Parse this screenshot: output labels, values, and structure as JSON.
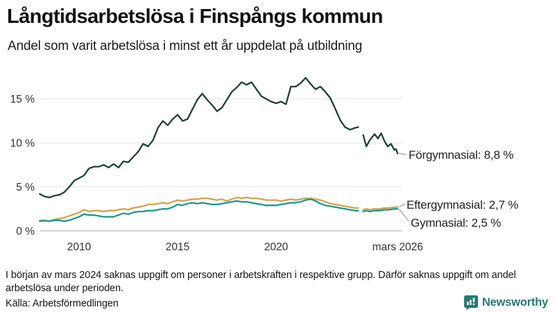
{
  "header": {
    "title": "Långtidsarbetslösa i Finspångs kommun",
    "subtitle": "Andel som varit arbetslösa i minst ett år uppdelat på utbildning"
  },
  "chart_data": {
    "type": "line",
    "unit": "%",
    "ylim": [
      0,
      17.5
    ],
    "x_range": [
      2008.0,
      2026.25
    ],
    "grid": true,
    "legend_position": "end-of-line-labels",
    "y_ticks": [
      {
        "label": "0 %",
        "v": 0
      },
      {
        "label": "5 %",
        "v": 5
      },
      {
        "label": "10 %",
        "v": 10
      },
      {
        "label": "15 %",
        "v": 15
      }
    ],
    "x_ticks": [
      {
        "label": "2010",
        "t": 2010
      },
      {
        "label": "2015",
        "t": 2015
      },
      {
        "label": "2020",
        "t": 2020
      },
      {
        "label": "mars 2026",
        "t": 2026.17
      }
    ],
    "data_gap": {
      "start": 2024.17,
      "end": 2024.42,
      "reason": "uppgift saknas"
    },
    "series": [
      {
        "name": "Förgymnasial",
        "end_label": "Förgymnasial: 8,8 %",
        "end_value": "8,8 %",
        "color": "#1e3f3a",
        "points": [
          [
            2008,
            4.2
          ],
          [
            2008.25,
            3.9
          ],
          [
            2008.5,
            3.8
          ],
          [
            2008.75,
            4.0
          ],
          [
            2009,
            4.1
          ],
          [
            2009.25,
            4.4
          ],
          [
            2009.5,
            5.0
          ],
          [
            2009.75,
            5.7
          ],
          [
            2010,
            6.0
          ],
          [
            2010.25,
            6.3
          ],
          [
            2010.5,
            7.1
          ],
          [
            2010.75,
            7.3
          ],
          [
            2011,
            7.3
          ],
          [
            2011.25,
            7.5
          ],
          [
            2011.5,
            7.2
          ],
          [
            2011.75,
            7.6
          ],
          [
            2012,
            7.2
          ],
          [
            2012.25,
            7.9
          ],
          [
            2012.5,
            7.8
          ],
          [
            2012.75,
            8.4
          ],
          [
            2013,
            9.0
          ],
          [
            2013.25,
            9.9
          ],
          [
            2013.5,
            9.6
          ],
          [
            2013.75,
            10.3
          ],
          [
            2014,
            11.7
          ],
          [
            2014.25,
            12.5
          ],
          [
            2014.5,
            12.0
          ],
          [
            2014.75,
            12.7
          ],
          [
            2015,
            13.2
          ],
          [
            2015.25,
            12.5
          ],
          [
            2015.5,
            12.7
          ],
          [
            2015.75,
            13.8
          ],
          [
            2016,
            14.9
          ],
          [
            2016.25,
            15.6
          ],
          [
            2016.5,
            14.9
          ],
          [
            2016.75,
            14.3
          ],
          [
            2017,
            13.6
          ],
          [
            2017.25,
            14.0
          ],
          [
            2017.5,
            14.9
          ],
          [
            2017.75,
            15.8
          ],
          [
            2018,
            16.3
          ],
          [
            2018.25,
            16.9
          ],
          [
            2018.5,
            16.6
          ],
          [
            2018.75,
            16.9
          ],
          [
            2019,
            16.1
          ],
          [
            2019.25,
            15.3
          ],
          [
            2019.5,
            15.0
          ],
          [
            2019.75,
            14.7
          ],
          [
            2020,
            14.5
          ],
          [
            2020.25,
            14.7
          ],
          [
            2020.5,
            14.4
          ],
          [
            2020.75,
            16.4
          ],
          [
            2021,
            16.4
          ],
          [
            2021.25,
            16.8
          ],
          [
            2021.5,
            17.4
          ],
          [
            2021.75,
            16.7
          ],
          [
            2022,
            16.1
          ],
          [
            2022.25,
            16.4
          ],
          [
            2022.5,
            15.8
          ],
          [
            2022.75,
            15.1
          ],
          [
            2023,
            13.9
          ],
          [
            2023.25,
            12.6
          ],
          [
            2023.5,
            11.8
          ],
          [
            2023.75,
            11.5
          ],
          [
            2024,
            11.7
          ],
          [
            2024.17,
            11.8
          ],
          [
            2024.25,
            null
          ],
          [
            2024.42,
            10.9
          ],
          [
            2024.58,
            9.6
          ],
          [
            2024.75,
            10.3
          ],
          [
            2025,
            11.0
          ],
          [
            2025.17,
            10.5
          ],
          [
            2025.33,
            11.1
          ],
          [
            2025.5,
            10.2
          ],
          [
            2025.67,
            9.6
          ],
          [
            2025.83,
            9.9
          ],
          [
            2026,
            9.2
          ],
          [
            2026.08,
            9.3
          ],
          [
            2026.17,
            8.8
          ]
        ]
      },
      {
        "name": "Eftergymnasial",
        "end_label": "Eftergymnasial: 2,7 %",
        "end_value": "2,7 %",
        "color": "#d8a04a",
        "points": [
          [
            2008,
            1.2
          ],
          [
            2008.25,
            1.2
          ],
          [
            2008.5,
            1.1
          ],
          [
            2008.75,
            1.3
          ],
          [
            2009,
            1.4
          ],
          [
            2009.25,
            1.5
          ],
          [
            2009.5,
            1.7
          ],
          [
            2009.75,
            1.9
          ],
          [
            2010,
            2.1
          ],
          [
            2010.25,
            2.4
          ],
          [
            2010.5,
            2.2
          ],
          [
            2010.75,
            2.3
          ],
          [
            2011,
            2.3
          ],
          [
            2011.25,
            2.2
          ],
          [
            2011.5,
            2.3
          ],
          [
            2011.75,
            2.3
          ],
          [
            2012,
            2.4
          ],
          [
            2012.25,
            2.5
          ],
          [
            2012.5,
            2.4
          ],
          [
            2012.75,
            2.6
          ],
          [
            2013,
            2.7
          ],
          [
            2013.25,
            2.8
          ],
          [
            2013.5,
            3.0
          ],
          [
            2013.75,
            3.0
          ],
          [
            2014,
            3.1
          ],
          [
            2014.25,
            3.2
          ],
          [
            2014.5,
            3.1
          ],
          [
            2014.75,
            3.3
          ],
          [
            2015,
            3.5
          ],
          [
            2015.25,
            3.4
          ],
          [
            2015.5,
            3.5
          ],
          [
            2015.75,
            3.6
          ],
          [
            2016,
            3.6
          ],
          [
            2016.25,
            3.7
          ],
          [
            2016.5,
            3.7
          ],
          [
            2016.75,
            3.6
          ],
          [
            2017,
            3.5
          ],
          [
            2017.25,
            3.6
          ],
          [
            2017.5,
            3.4
          ],
          [
            2017.75,
            3.6
          ],
          [
            2018,
            3.8
          ],
          [
            2018.25,
            3.7
          ],
          [
            2018.5,
            3.8
          ],
          [
            2018.75,
            3.7
          ],
          [
            2019,
            3.7
          ],
          [
            2019.25,
            3.6
          ],
          [
            2019.5,
            3.5
          ],
          [
            2019.75,
            3.5
          ],
          [
            2020,
            3.5
          ],
          [
            2020.25,
            3.4
          ],
          [
            2020.5,
            3.5
          ],
          [
            2020.75,
            3.6
          ],
          [
            2021,
            3.5
          ],
          [
            2021.25,
            3.6
          ],
          [
            2021.5,
            3.7
          ],
          [
            2021.75,
            3.7
          ],
          [
            2022,
            3.6
          ],
          [
            2022.25,
            3.5
          ],
          [
            2022.5,
            3.3
          ],
          [
            2022.75,
            3.1
          ],
          [
            2023,
            3.0
          ],
          [
            2023.25,
            2.9
          ],
          [
            2023.5,
            2.8
          ],
          [
            2023.75,
            2.7
          ],
          [
            2024,
            2.6
          ],
          [
            2024.17,
            2.6
          ],
          [
            2024.25,
            null
          ],
          [
            2024.42,
            2.4
          ],
          [
            2024.58,
            2.5
          ],
          [
            2024.75,
            2.4
          ],
          [
            2025,
            2.5
          ],
          [
            2025.25,
            2.5
          ],
          [
            2025.5,
            2.6
          ],
          [
            2025.75,
            2.6
          ],
          [
            2026,
            2.7
          ],
          [
            2026.17,
            2.7
          ]
        ]
      },
      {
        "name": "Gymnasial",
        "end_label": "Gymnasial: 2,5 %",
        "end_value": "2,5 %",
        "color": "#169a8c",
        "points": [
          [
            2008,
            1.1
          ],
          [
            2008.25,
            1.15
          ],
          [
            2008.5,
            1.1
          ],
          [
            2008.75,
            1.2
          ],
          [
            2009,
            1.2
          ],
          [
            2009.25,
            1.1
          ],
          [
            2009.5,
            1.2
          ],
          [
            2009.75,
            1.4
          ],
          [
            2010,
            1.6
          ],
          [
            2010.25,
            1.9
          ],
          [
            2010.5,
            1.8
          ],
          [
            2010.75,
            1.8
          ],
          [
            2011,
            1.7
          ],
          [
            2011.25,
            1.6
          ],
          [
            2011.5,
            1.6
          ],
          [
            2011.75,
            1.6
          ],
          [
            2012,
            1.8
          ],
          [
            2012.25,
            2.0
          ],
          [
            2012.5,
            1.9
          ],
          [
            2012.75,
            2.1
          ],
          [
            2013,
            2.2
          ],
          [
            2013.25,
            2.2
          ],
          [
            2013.5,
            2.3
          ],
          [
            2013.75,
            2.3
          ],
          [
            2014,
            2.4
          ],
          [
            2014.25,
            2.5
          ],
          [
            2014.5,
            2.5
          ],
          [
            2014.75,
            2.7
          ],
          [
            2015,
            3.0
          ],
          [
            2015.25,
            2.9
          ],
          [
            2015.5,
            3.1
          ],
          [
            2015.75,
            3.2
          ],
          [
            2016,
            3.1
          ],
          [
            2016.25,
            3.2
          ],
          [
            2016.5,
            3.1
          ],
          [
            2016.75,
            3.0
          ],
          [
            2017,
            3.0
          ],
          [
            2017.25,
            3.1
          ],
          [
            2017.5,
            3.2
          ],
          [
            2017.75,
            3.3
          ],
          [
            2018,
            3.4
          ],
          [
            2018.25,
            3.3
          ],
          [
            2018.5,
            3.3
          ],
          [
            2018.75,
            3.2
          ],
          [
            2019,
            3.1
          ],
          [
            2019.25,
            3.0
          ],
          [
            2019.5,
            2.9
          ],
          [
            2019.75,
            2.9
          ],
          [
            2020,
            2.9
          ],
          [
            2020.25,
            3.0
          ],
          [
            2020.5,
            3.1
          ],
          [
            2020.75,
            3.2
          ],
          [
            2021,
            3.2
          ],
          [
            2021.25,
            3.3
          ],
          [
            2021.5,
            3.5
          ],
          [
            2021.75,
            3.6
          ],
          [
            2022,
            3.4
          ],
          [
            2022.25,
            3.1
          ],
          [
            2022.5,
            2.9
          ],
          [
            2022.75,
            2.8
          ],
          [
            2023,
            2.7
          ],
          [
            2023.25,
            2.6
          ],
          [
            2023.5,
            2.5
          ],
          [
            2023.75,
            2.4
          ],
          [
            2024,
            2.3
          ],
          [
            2024.17,
            2.3
          ],
          [
            2024.25,
            null
          ],
          [
            2024.42,
            2.2
          ],
          [
            2024.58,
            2.3
          ],
          [
            2024.75,
            2.2
          ],
          [
            2025,
            2.3
          ],
          [
            2025.25,
            2.3
          ],
          [
            2025.5,
            2.4
          ],
          [
            2025.75,
            2.4
          ],
          [
            2026,
            2.5
          ],
          [
            2026.17,
            2.5
          ]
        ]
      }
    ]
  },
  "footer": {
    "note": "I början av mars 2024 saknas uppgift om personer i arbetskraften i respektive grupp. Därför saknas uppgift om andel arbetslösa under perioden.",
    "source": "Källa: Arbetsförmedlingen",
    "brand": "Newsworthy"
  },
  "colors": {
    "grid": "#eaeaee",
    "baseline": "#d6d6da",
    "tick_text": "#333333",
    "brand_teal": "#26796f"
  }
}
